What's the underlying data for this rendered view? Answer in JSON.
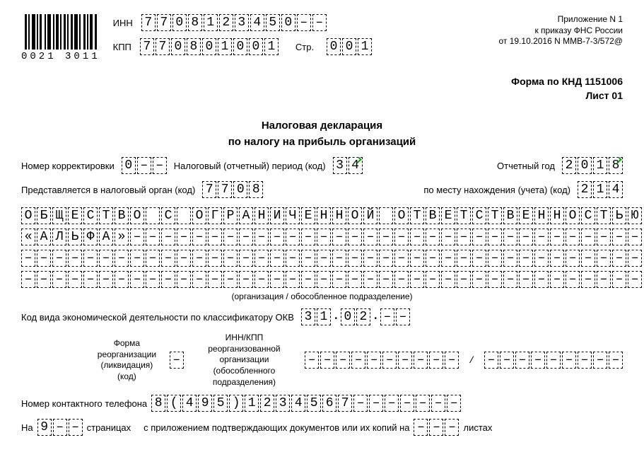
{
  "barcode_label": "0021 3011",
  "header_right": {
    "l1": "Приложение N 1",
    "l2": "к приказу ФНС России",
    "l3": "от 19.10.2016 N ММВ-7-3/572@"
  },
  "labels": {
    "inn": "ИНН",
    "kpp": "КПП",
    "str": "Стр.",
    "form_code_1": "Форма по КНД 1151006",
    "form_code_2": "Лист 01",
    "title_1": "Налоговая декларация",
    "title_2": "по налогу на прибыль организаций",
    "corr": "Номер корректировки",
    "tax_period": "Налоговый (отчетный) период (код)",
    "report_year": "Отчетный год",
    "tax_office": "Представляется в налоговый орган (код)",
    "location": "по месту нахождения (учета) (код)",
    "org_caption": "(организация / обособленное подразделение)",
    "okved": "Код вида экономической деятельности по классификатору ОКВ",
    "reorg_form": "Форма\nреорганизации\n(ликвидация) (код)",
    "reorg_inn": "ИНН/КПП реорганизованной\nорганизации (обособленного\nподразделения)",
    "phone": "Номер контактного телефона",
    "on": "На",
    "pages": "страницах",
    "attach": "с приложением подтверждающих документов или их копий на",
    "sheets": "листах"
  },
  "fields": {
    "inn": [
      "7",
      "7",
      "0",
      "8",
      "1",
      "2",
      "3",
      "4",
      "5",
      "0",
      "–",
      "–"
    ],
    "kpp": [
      "7",
      "7",
      "0",
      "8",
      "0",
      "1",
      "0",
      "0",
      "1"
    ],
    "page": [
      "0",
      "0",
      "1"
    ],
    "corr": [
      "0",
      "–",
      "–"
    ],
    "tax_period": [
      "3",
      "4"
    ],
    "report_year": [
      "2",
      "0",
      "1",
      "8"
    ],
    "tax_office": [
      "7",
      "7",
      "0",
      "8"
    ],
    "location": [
      "2",
      "1",
      "4"
    ],
    "org_line1": [
      "О",
      "Б",
      "Щ",
      "Е",
      "С",
      "Т",
      "В",
      "О",
      "",
      "С",
      "",
      "О",
      "Г",
      "Р",
      "А",
      "Н",
      "И",
      "Ч",
      "Е",
      "Н",
      "Н",
      "О",
      "Й",
      "",
      "О",
      "Т",
      "В",
      "Е",
      "Т",
      "С",
      "Т",
      "В",
      "Е",
      "Н",
      "Н",
      "О",
      "С",
      "Т",
      "Ь",
      "Ю"
    ],
    "org_line2": [
      "«",
      "А",
      "Л",
      "Ь",
      "Ф",
      "А",
      "»",
      "–",
      "–",
      "–",
      "–",
      "–",
      "–",
      "–",
      "–",
      "–",
      "–",
      "–",
      "–",
      "–",
      "–",
      "–",
      "–",
      "–",
      "–",
      "–",
      "–",
      "–",
      "–",
      "–",
      "–",
      "–",
      "–",
      "–",
      "–",
      "–",
      "–",
      "–",
      "–",
      "–"
    ],
    "org_line3": [
      "–",
      "–",
      "–",
      "–",
      "–",
      "–",
      "–",
      "–",
      "–",
      "–",
      "–",
      "–",
      "–",
      "–",
      "–",
      "–",
      "–",
      "–",
      "–",
      "–",
      "–",
      "–",
      "–",
      "–",
      "–",
      "–",
      "–",
      "–",
      "–",
      "–",
      "–",
      "–",
      "–",
      "–",
      "–",
      "–",
      "–",
      "–",
      "–",
      "–"
    ],
    "org_line4": [
      "–",
      "–",
      "–",
      "–",
      "–",
      "–",
      "–",
      "–",
      "–",
      "–",
      "–",
      "–",
      "–",
      "–",
      "–",
      "–",
      "–",
      "–",
      "–",
      "–",
      "–",
      "–",
      "–",
      "–",
      "–",
      "–",
      "–",
      "–",
      "–",
      "–",
      "–",
      "–",
      "–",
      "–",
      "–",
      "–",
      "–",
      "–",
      "–",
      "–"
    ],
    "okved": [
      "3",
      "1",
      ".",
      "0",
      "2",
      ".",
      "–",
      "–"
    ],
    "reorg_code": [
      "–"
    ],
    "reorg_inn": [
      "–",
      "–",
      "–",
      "–",
      "–",
      "–",
      "–",
      "–",
      "–",
      "–"
    ],
    "reorg_kpp": [
      "–",
      "–",
      "–",
      "–",
      "–",
      "–",
      "–",
      "–",
      "–"
    ],
    "phone": [
      "8",
      "(",
      "4",
      "9",
      "5",
      ")",
      "1",
      "2",
      "3",
      "4",
      "5",
      "6",
      "7",
      "–",
      "–",
      "–",
      "–",
      "–",
      "–",
      "–"
    ],
    "pages_count": [
      "9",
      "–",
      "–"
    ],
    "attach_count": [
      "–",
      "–",
      "–"
    ]
  },
  "marks": {
    "tax_period_1": true,
    "report_year_3": true
  }
}
